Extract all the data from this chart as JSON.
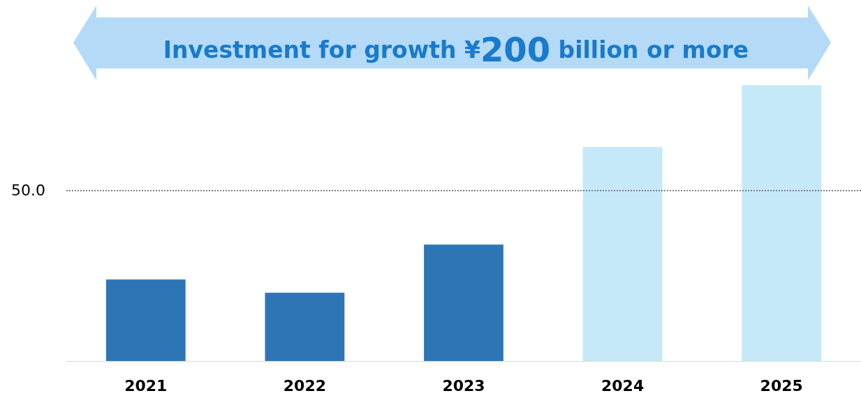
{
  "chart_data": {
    "type": "bar",
    "title": "Investment for growth ¥200 billion or more",
    "categories": [
      "2021",
      "2022",
      "2023",
      "2024",
      "2025"
    ],
    "values": [
      23.9,
      20.0,
      34.1,
      62.7,
      80.8
    ],
    "colors": [
      "#2e75b6",
      "#2e75b6",
      "#2e75b6",
      "#c5e9f9",
      "#c5e9f9"
    ],
    "ylim": [
      0,
      81
    ],
    "yticks": [
      {
        "value": 50,
        "label": "50.0"
      }
    ],
    "ref_lines": [
      {
        "axis": "y",
        "value": 50,
        "color": "#7f7f7f",
        "line_style": "dotted"
      }
    ],
    "grid": false
  }
}
